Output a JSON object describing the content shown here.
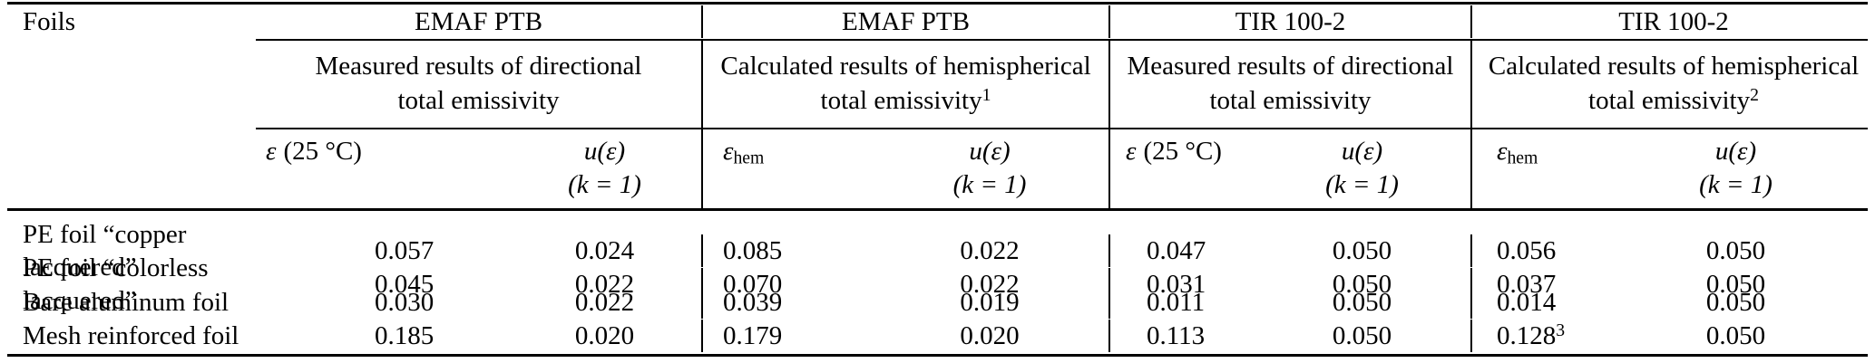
{
  "colors": {
    "background": "#ffffff",
    "text": "#000000",
    "rule": "#000000"
  },
  "table": {
    "row_header_label": "Foils",
    "groups": [
      {
        "name": "EMAF PTB",
        "desc_line1": "Measured results of directional",
        "desc_line2": "total emissivity",
        "desc_sup": "",
        "eps": {
          "sym": "ε",
          "rest": "(25 °C)",
          "sub": ""
        },
        "u_line1": "u(ε)",
        "u_line2": "(k = 1)"
      },
      {
        "name": "EMAF PTB",
        "desc_line1": "Calculated results of hemispherical",
        "desc_line2": "total emissivity",
        "desc_sup": "1",
        "eps": {
          "sym": "ε",
          "rest": "",
          "sub": "hem"
        },
        "u_line1": "u(ε)",
        "u_line2": "(k = 1)"
      },
      {
        "name": "TIR 100-2",
        "desc_line1": "Measured results of directional",
        "desc_line2": "total emissivity",
        "desc_sup": "",
        "eps": {
          "sym": "ε",
          "rest": "(25 °C)",
          "sub": ""
        },
        "u_line1": "u(ε)",
        "u_line2": "(k = 1)"
      },
      {
        "name": "TIR 100-2",
        "desc_line1": "Calculated results of hemispherical",
        "desc_line2": "total emissivity",
        "desc_sup": "2",
        "eps": {
          "sym": "ε",
          "rest": "",
          "sub": "hem"
        },
        "u_line1": "u(ε)",
        "u_line2": "(k = 1)"
      }
    ],
    "rows": [
      {
        "label": "PE foil “copper lacquered”",
        "cells": [
          {
            "v": "0.057"
          },
          {
            "v": "0.024"
          },
          {
            "v": "0.085"
          },
          {
            "v": "0.022"
          },
          {
            "v": "0.047"
          },
          {
            "v": "0.050"
          },
          {
            "v": "0.056"
          },
          {
            "v": "0.050"
          }
        ]
      },
      {
        "label": "PE foil “colorless lacquered”",
        "cells": [
          {
            "v": "0.045"
          },
          {
            "v": "0.022"
          },
          {
            "v": "0.070"
          },
          {
            "v": "0.022"
          },
          {
            "v": "0.031"
          },
          {
            "v": "0.050"
          },
          {
            "v": "0.037"
          },
          {
            "v": "0.050"
          }
        ]
      },
      {
        "label": "Bare aluminum foil",
        "cells": [
          {
            "v": "0.030"
          },
          {
            "v": "0.022"
          },
          {
            "v": "0.039"
          },
          {
            "v": "0.019"
          },
          {
            "v": "0.011"
          },
          {
            "v": "0.050"
          },
          {
            "v": "0.014"
          },
          {
            "v": "0.050"
          }
        ]
      },
      {
        "label": "Mesh reinforced foil",
        "cells": [
          {
            "v": "0.185"
          },
          {
            "v": "0.020"
          },
          {
            "v": "0.179"
          },
          {
            "v": "0.020"
          },
          {
            "v": "0.113"
          },
          {
            "v": "0.050"
          },
          {
            "v": "0.128",
            "sup": "3"
          },
          {
            "v": "0.050"
          }
        ]
      }
    ]
  }
}
